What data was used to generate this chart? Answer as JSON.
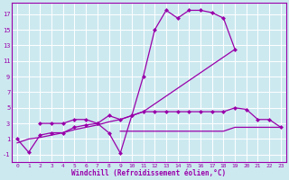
{
  "background_color": "#cde9f0",
  "grid_color": "#ffffff",
  "line_color": "#9900aa",
  "xlabel": "Windchill (Refroidissement éolien,°C)",
  "xlim": [
    -0.5,
    23.5
  ],
  "ylim": [
    -2,
    18.5
  ],
  "xticks": [
    0,
    1,
    2,
    3,
    4,
    5,
    6,
    7,
    8,
    9,
    10,
    11,
    12,
    13,
    14,
    15,
    16,
    17,
    18,
    19,
    20,
    21,
    22,
    23
  ],
  "yticks": [
    -1,
    1,
    3,
    5,
    7,
    9,
    11,
    13,
    15,
    17
  ],
  "series": [
    {
      "x": [
        0,
        1,
        2,
        3,
        4,
        5,
        6,
        7,
        8,
        9,
        10,
        11,
        12,
        13,
        14,
        15,
        16,
        17,
        18,
        19
      ],
      "y": [
        1,
        -0.7,
        1.5,
        1.8,
        1.8,
        2.5,
        2.8,
        3.0,
        1.8,
        -0.8,
        4,
        9,
        15,
        17.5,
        16.5,
        17.5,
        17.5,
        17.2,
        16.5,
        12.5
      ],
      "marker": true,
      "markersize": 2.5,
      "linewidth": 0.9
    },
    {
      "x": [
        0,
        1,
        2,
        3,
        4,
        5,
        6,
        7,
        8,
        9,
        10,
        11,
        12,
        13,
        14,
        15,
        16,
        17,
        18,
        19
      ],
      "y": [
        0.5,
        1.0,
        1.2,
        1.5,
        1.8,
        2.2,
        2.5,
        2.8,
        3.2,
        3.5,
        4.0,
        4.5,
        5.5,
        6.5,
        7.5,
        8.5,
        9.5,
        10.5,
        11.5,
        12.5
      ],
      "marker": false,
      "markersize": 0,
      "linewidth": 0.9
    },
    {
      "x": [
        2,
        3,
        4,
        5,
        6,
        7,
        8,
        9,
        10,
        11,
        12,
        13,
        14,
        15,
        16,
        17,
        18,
        19,
        20,
        21,
        22,
        23
      ],
      "y": [
        3.0,
        3.0,
        3.0,
        3.5,
        3.5,
        3.0,
        4.0,
        3.5,
        4.0,
        4.5,
        4.5,
        4.5,
        4.5,
        4.5,
        4.5,
        4.5,
        4.5,
        5.0,
        4.8,
        3.5,
        3.5,
        2.5
      ],
      "marker": true,
      "markersize": 2.5,
      "linewidth": 0.9
    },
    {
      "x": [
        9,
        10,
        11,
        12,
        13,
        14,
        15,
        16,
        17,
        18,
        19,
        20,
        21,
        22,
        23
      ],
      "y": [
        2.0,
        2.0,
        2.0,
        2.0,
        2.0,
        2.0,
        2.0,
        2.0,
        2.0,
        2.0,
        2.5,
        2.5,
        2.5,
        2.5,
        2.5
      ],
      "marker": false,
      "markersize": 0,
      "linewidth": 0.9
    }
  ]
}
